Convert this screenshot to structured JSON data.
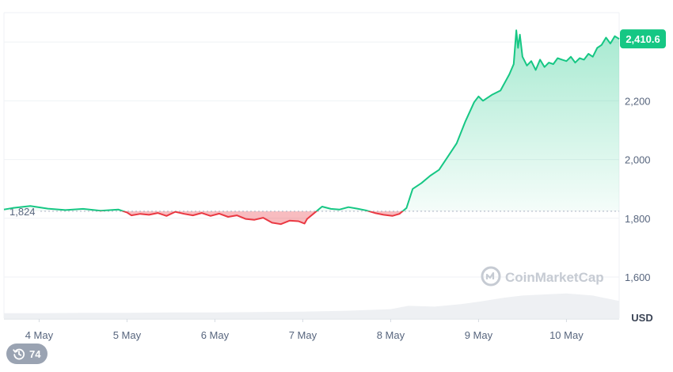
{
  "chart_data": {
    "type": "area",
    "unit": "USD",
    "ylim": [
      1460,
      2500
    ],
    "y_ticks": [
      1600,
      1800,
      2000,
      2200
    ],
    "y_tick_labels": [
      "1,600",
      "1,800",
      "2,000",
      "2,200"
    ],
    "x_ticks": [
      "4 May",
      "5 May",
      "6 May",
      "7 May",
      "8 May",
      "9 May",
      "10 May"
    ],
    "x_range_days": [
      3.6,
      10.6
    ],
    "baseline": {
      "value": 1824,
      "label": "1,824"
    },
    "current": {
      "value": 2410.6,
      "label": "2,410.6"
    },
    "colors": {
      "up": "#16c784",
      "down": "#ea3943"
    },
    "series": [
      {
        "x_day": [
          3.6,
          3.7,
          3.9,
          4.1,
          4.3,
          4.5,
          4.7,
          4.9,
          5.0,
          5.05,
          5.15,
          5.25,
          5.35,
          5.45,
          5.55,
          5.65,
          5.75,
          5.85,
          5.95,
          6.05,
          6.15,
          6.25,
          6.35,
          6.45,
          6.55,
          6.65,
          6.75,
          6.85,
          6.95,
          7.02,
          7.05,
          7.12,
          7.22,
          7.32,
          7.42,
          7.52,
          7.62,
          7.72,
          7.82,
          7.92,
          8.02,
          8.1,
          8.12,
          8.18,
          8.25,
          8.35,
          8.45,
          8.55,
          8.65,
          8.75,
          8.85,
          8.95,
          9.0,
          9.05,
          9.15,
          9.25,
          9.35,
          9.4,
          9.43,
          9.45,
          9.47,
          9.5,
          9.55,
          9.6,
          9.65,
          9.7,
          9.75,
          9.8,
          9.85,
          9.9,
          9.95,
          10.0,
          10.05,
          10.1,
          10.15,
          10.2,
          10.25,
          10.3,
          10.35,
          10.4,
          10.45,
          10.5,
          10.55,
          10.6
        ],
        "values": [
          1830,
          1835,
          1842,
          1833,
          1828,
          1832,
          1826,
          1830,
          1820,
          1810,
          1815,
          1812,
          1818,
          1808,
          1822,
          1815,
          1810,
          1818,
          1808,
          1816,
          1805,
          1810,
          1798,
          1795,
          1802,
          1785,
          1780,
          1792,
          1790,
          1782,
          1798,
          1815,
          1840,
          1832,
          1830,
          1838,
          1833,
          1827,
          1818,
          1812,
          1808,
          1815,
          1820,
          1835,
          1900,
          1920,
          1945,
          1965,
          2010,
          2055,
          2130,
          2195,
          2215,
          2200,
          2220,
          2235,
          2290,
          2325,
          2440,
          2380,
          2425,
          2350,
          2320,
          2335,
          2305,
          2340,
          2315,
          2330,
          2325,
          2345,
          2340,
          2335,
          2350,
          2330,
          2345,
          2340,
          2360,
          2350,
          2380,
          2390,
          2415,
          2395,
          2420,
          2410.6
        ]
      }
    ],
    "volume": {
      "x_day": [
        3.6,
        4.0,
        4.5,
        5.0,
        5.5,
        6.0,
        6.5,
        7.0,
        7.5,
        8.0,
        8.2,
        8.5,
        8.8,
        9.0,
        9.3,
        9.5,
        9.8,
        10.0,
        10.3,
        10.6
      ],
      "values": [
        0.12,
        0.12,
        0.13,
        0.13,
        0.14,
        0.14,
        0.15,
        0.16,
        0.18,
        0.22,
        0.3,
        0.28,
        0.34,
        0.4,
        0.5,
        0.55,
        0.58,
        0.6,
        0.55,
        0.42
      ]
    }
  },
  "watermark": "CoinMarketCap",
  "history_count": "74"
}
